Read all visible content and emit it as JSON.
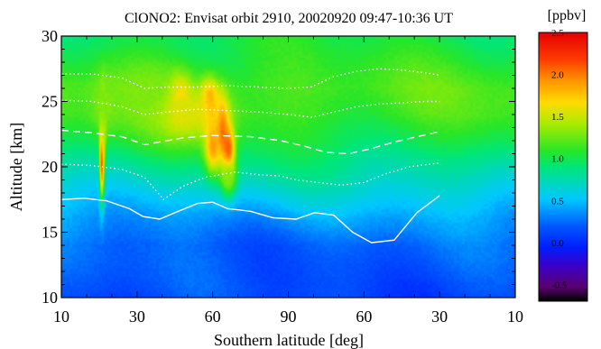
{
  "chart_data": {
    "type": "heatmap",
    "title": "ClONO2: Envisat orbit 2910, 20020920 09:47-10:36 UT",
    "xlabel": "Southern latitude [deg]",
    "ylabel": "Altitude [km]",
    "x_ticks": [
      "10",
      "30",
      "60",
      "90",
      "60",
      "30",
      "10"
    ],
    "y_ticks": [
      "10",
      "15",
      "20",
      "25",
      "30"
    ],
    "ylim": [
      10,
      30
    ],
    "colorbar": {
      "label": "[ppbv]",
      "range": [
        -0.7,
        2.5
      ],
      "ticks": [
        "2.5",
        "2.0",
        "1.5",
        "1.0",
        "0.5",
        "0.0",
        "-0.5"
      ]
    },
    "blobs": [
      {
        "x": 0.53,
        "y": 20.8,
        "sx": 0.022,
        "sy": 2.2,
        "v": 2.3
      },
      {
        "x": 0.55,
        "y": 23.5,
        "sx": 0.03,
        "sy": 2.0,
        "v": 1.5
      },
      {
        "x": 0.56,
        "y": 25.0,
        "sx": 0.12,
        "sy": 1.5,
        "v": 1.3
      },
      {
        "x": 1.55,
        "y": 25.2,
        "sx": 0.1,
        "sy": 1.1,
        "v": 2.35
      },
      {
        "x": 1.95,
        "y": 25.0,
        "sx": 0.08,
        "sy": 1.1,
        "v": 2.2
      },
      {
        "x": 2.12,
        "y": 23.0,
        "sx": 0.06,
        "sy": 1.6,
        "v": 2.3
      },
      {
        "x": 2.2,
        "y": 21.0,
        "sx": 0.06,
        "sy": 1.5,
        "v": 2.3
      },
      {
        "x": 1.7,
        "y": 24.2,
        "sx": 0.35,
        "sy": 1.5,
        "v": 1.6
      },
      {
        "x": 1.1,
        "y": 26.0,
        "sx": 0.35,
        "sy": 1.6,
        "v": 1.3
      },
      {
        "x": 2.0,
        "y": 21.6,
        "sx": 0.08,
        "sy": 1.5,
        "v": 1.9
      },
      {
        "x": 2.2,
        "y": 19.3,
        "sx": 0.08,
        "sy": 1.0,
        "v": 1.3
      }
    ],
    "background_profile": [
      {
        "alt": 10,
        "v": 0.12
      },
      {
        "alt": 14,
        "v": 0.22
      },
      {
        "alt": 16,
        "v": 0.38
      },
      {
        "alt": 18,
        "v": 0.6
      },
      {
        "alt": 20,
        "v": 0.82
      },
      {
        "alt": 22,
        "v": 1.02
      },
      {
        "alt": 24,
        "v": 1.15
      },
      {
        "alt": 26,
        "v": 1.18
      },
      {
        "alt": 28,
        "v": 1.08
      },
      {
        "alt": 30,
        "v": 1.0
      }
    ],
    "isolines": [
      {
        "style": "solid",
        "x": [
          0,
          0.3,
          0.6,
          0.9,
          1.08,
          1.3,
          1.5,
          1.8,
          2.0,
          2.2,
          2.5,
          2.8,
          3.1,
          3.35,
          3.6,
          3.85,
          4.1,
          4.4,
          4.7,
          5.0
        ],
        "alt": [
          17.5,
          17.6,
          17.4,
          16.8,
          16.2,
          16.0,
          16.5,
          17.2,
          17.3,
          16.8,
          16.6,
          16.1,
          16.0,
          16.5,
          16.3,
          15.0,
          14.2,
          14.4,
          16.5,
          17.8
        ]
      },
      {
        "style": "dotted",
        "x": [
          0,
          0.4,
          0.8,
          1.1,
          1.35,
          1.6,
          1.9,
          2.3,
          2.6,
          2.9,
          3.1,
          3.4,
          3.7,
          4.0,
          4.3,
          4.6,
          5.0
        ],
        "alt": [
          20.2,
          20.1,
          19.8,
          19.2,
          17.5,
          18.5,
          19.2,
          19.6,
          19.4,
          19.3,
          19.0,
          18.8,
          18.6,
          18.8,
          19.5,
          20.0,
          20.3
        ]
      },
      {
        "style": "dashed",
        "x": [
          0,
          0.4,
          0.8,
          1.1,
          1.3,
          1.6,
          2.0,
          2.5,
          2.9,
          3.2,
          3.5,
          3.8,
          4.1,
          4.4,
          4.7,
          5.0
        ],
        "alt": [
          22.8,
          22.6,
          22.3,
          21.7,
          21.9,
          22.2,
          22.4,
          22.3,
          22.0,
          21.6,
          21.1,
          21.0,
          21.4,
          21.9,
          22.3,
          22.7
        ]
      },
      {
        "style": "dotted",
        "x": [
          0,
          0.4,
          0.8,
          1.1,
          1.4,
          1.8,
          2.2,
          2.6,
          3.0,
          3.3,
          3.6,
          3.9,
          4.2,
          4.5,
          4.8,
          5.0
        ],
        "alt": [
          25.1,
          25.0,
          24.6,
          24.0,
          24.2,
          24.4,
          24.3,
          24.2,
          24.0,
          23.8,
          24.2,
          24.6,
          24.8,
          24.9,
          25.0,
          25.0
        ]
      },
      {
        "style": "dotted",
        "x": [
          0,
          0.4,
          0.8,
          1.1,
          1.4,
          1.8,
          2.2,
          2.6,
          3.0,
          3.3,
          3.6,
          3.9,
          4.2,
          4.5,
          4.8,
          5.0
        ],
        "alt": [
          27.1,
          27.1,
          26.8,
          26.0,
          26.1,
          26.1,
          26.2,
          26.1,
          26.0,
          26.1,
          26.9,
          27.3,
          27.5,
          27.4,
          27.2,
          27.0
        ]
      }
    ]
  }
}
